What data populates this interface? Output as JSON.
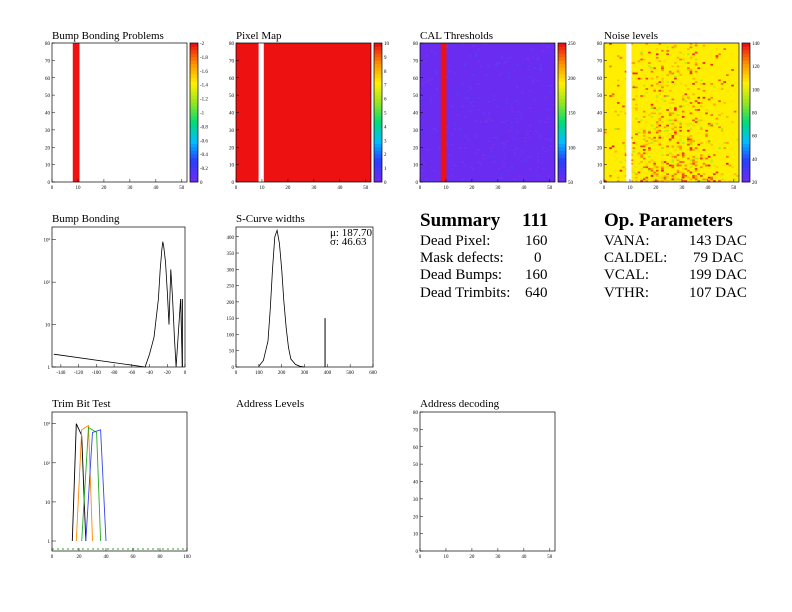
{
  "panels": {
    "bump_problems": {
      "title": "Bump Bonding Problems",
      "xticks": [
        0,
        10,
        20,
        30,
        40,
        50
      ],
      "yticks": [
        0,
        10,
        20,
        30,
        40,
        50,
        60,
        70,
        80
      ],
      "scale_labels": [
        "0",
        "-0.2",
        "-0.4",
        "-0.6",
        "-0.8",
        "-1",
        "-1.2",
        "-1.4",
        "-1.6",
        "-1.8",
        "-2"
      ]
    },
    "pixel_map": {
      "title": "Pixel Map",
      "xticks": [
        0,
        10,
        20,
        30,
        40,
        50
      ],
      "yticks": [
        0,
        10,
        20,
        30,
        40,
        50,
        60,
        70,
        80
      ],
      "scale_labels": [
        "0",
        "1",
        "2",
        "3",
        "4",
        "5",
        "6",
        "7",
        "8",
        "9",
        "10"
      ]
    },
    "cal_thresholds": {
      "title": "CAL Thresholds",
      "xticks": [
        0,
        10,
        20,
        30,
        40,
        50
      ],
      "yticks": [
        0,
        10,
        20,
        30,
        40,
        50,
        60,
        70,
        80
      ],
      "scale_labels": [
        "50",
        "100",
        "150",
        "200",
        "250"
      ]
    },
    "noise_levels": {
      "title": "Noise levels",
      "xticks": [
        0,
        10,
        20,
        30,
        40,
        50
      ],
      "yticks": [
        0,
        10,
        20,
        30,
        40,
        50,
        60,
        70,
        80
      ],
      "scale_labels": [
        "20",
        "40",
        "60",
        "80",
        "100",
        "120",
        "140"
      ]
    },
    "bump_bonding": {
      "title": "Bump Bonding",
      "xticks": [
        "-140",
        "-120",
        "-100",
        "-80",
        "-60",
        "-40",
        "-20",
        "0"
      ],
      "yticks": [
        "1",
        "10",
        "10²",
        "10³"
      ]
    },
    "scurve_widths": {
      "title": "S-Curve widths",
      "xticks": [
        "0",
        "100",
        "200",
        "300",
        "400",
        "500",
        "600"
      ],
      "yticks": [
        "0",
        "50",
        "100",
        "150",
        "200",
        "250",
        "300",
        "350",
        "400"
      ],
      "mu_label": "μ: 187.70",
      "sigma_label": "σ: 46.63"
    },
    "trim_bit_test": {
      "title": "Trim Bit Test",
      "xticks": [
        "0",
        "20",
        "40",
        "60",
        "80",
        "100"
      ],
      "yticks": [
        "1",
        "10",
        "10²",
        "10³"
      ]
    },
    "address_levels": {
      "title": "Address Levels"
    },
    "address_decoding": {
      "title": "Address decoding",
      "xticks": [
        0,
        10,
        20,
        30,
        40,
        50
      ],
      "yticks": [
        0,
        10,
        20,
        30,
        40,
        50,
        60,
        70,
        80
      ]
    }
  },
  "summary": {
    "title": "Summary",
    "number": "111",
    "rows": [
      {
        "label": "Dead Pixel:",
        "value": "160"
      },
      {
        "label": "Mask defects:",
        "value": "0"
      },
      {
        "label": "Dead Bumps:",
        "value": "160"
      },
      {
        "label": "Dead Trimbits:",
        "value": "640"
      }
    ]
  },
  "op_parameters": {
    "title": "Op. Parameters",
    "rows": [
      {
        "label": "VANA:",
        "value": "143 DAC"
      },
      {
        "label": "CALDEL:",
        "value": "79 DAC"
      },
      {
        "label": "VCAL:",
        "value": "199 DAC"
      },
      {
        "label": "VTHR:",
        "value": "107 DAC"
      }
    ]
  },
  "colors": {
    "red": "#ee1111",
    "blue_violet": "#6a2cf0",
    "yellow": "#ffee00"
  },
  "chart_data": [
    {
      "type": "heatmap",
      "title": "Bump Bonding Problems",
      "xlim": [
        0,
        52
      ],
      "ylim": [
        0,
        80
      ],
      "zlim": [
        -2,
        0
      ],
      "note_cols": "red band at columns 8-10"
    },
    {
      "type": "heatmap",
      "title": "Pixel Map",
      "xlim": [
        0,
        52
      ],
      "ylim": [
        0,
        80
      ],
      "zlim": [
        0,
        10
      ],
      "note_cols": "empty column at 9"
    },
    {
      "type": "heatmap",
      "title": "CAL Thresholds",
      "xlim": [
        0,
        52
      ],
      "ylim": [
        0,
        80
      ],
      "zlim": [
        40,
        255
      ]
    },
    {
      "type": "heatmap",
      "title": "Noise levels",
      "xlim": [
        0,
        52
      ],
      "ylim": [
        0,
        80
      ],
      "zlim": [
        0,
        150
      ]
    },
    {
      "type": "line",
      "title": "Bump Bonding",
      "xlim": [
        -150,
        0
      ],
      "log_y": true,
      "x": [
        -148,
        -45,
        -40,
        -35,
        -30,
        -28,
        -26,
        -25,
        -24,
        -22,
        -20,
        -18,
        -16,
        -14,
        -12,
        -10,
        -5,
        -3
      ],
      "y": [
        2,
        1,
        2,
        5,
        40,
        200,
        600,
        900,
        700,
        300,
        60,
        10,
        200,
        40,
        5,
        1,
        40,
        1
      ]
    },
    {
      "type": "line",
      "title": "S-Curve widths",
      "xlim": [
        0,
        600
      ],
      "ylim": [
        0,
        430
      ],
      "x": [
        100,
        120,
        140,
        150,
        160,
        170,
        180,
        190,
        200,
        210,
        220,
        230,
        240,
        260,
        280,
        300,
        390
      ],
      "y": [
        2,
        20,
        80,
        180,
        300,
        400,
        420,
        380,
        300,
        200,
        120,
        60,
        25,
        8,
        2,
        0,
        150
      ]
    },
    {
      "type": "line",
      "title": "Trim Bit Test",
      "xlim": [
        0,
        100
      ],
      "log_y": true,
      "series": [
        {
          "name": "",
          "values": [
            [
              15,
              1
            ],
            [
              18,
              1000
            ],
            [
              22,
              500
            ],
            [
              25,
              1
            ]
          ]
        },
        {
          "name": "",
          "values": [
            [
              18,
              1
            ],
            [
              22,
              700
            ],
            [
              27,
              900
            ],
            [
              30,
              1
            ]
          ]
        },
        {
          "name": "",
          "values": [
            [
              22,
              1
            ],
            [
              27,
              800
            ],
            [
              33,
              600
            ],
            [
              36,
              1
            ]
          ]
        },
        {
          "name": "",
          "values": [
            [
              25,
              1
            ],
            [
              30,
              600
            ],
            [
              36,
              700
            ],
            [
              40,
              1
            ]
          ]
        }
      ]
    },
    {
      "type": "scatter",
      "title": "Address decoding",
      "xlim": [
        0,
        52
      ],
      "ylim": [
        0,
        80
      ],
      "x": [],
      "y": []
    }
  ]
}
